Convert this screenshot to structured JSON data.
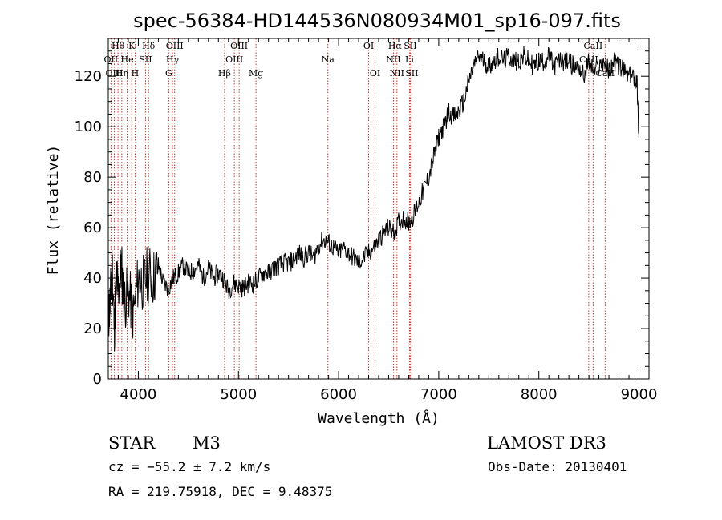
{
  "chart_data": {
    "type": "line",
    "title": "spec-56384-HD144536N080934M01_sp16-097.fits",
    "xlabel": "Wavelength (Å)",
    "ylabel": "Flux (relative)",
    "xlim": [
      3700,
      9100
    ],
    "ylim": [
      0,
      135
    ],
    "xticks": [
      4000,
      5000,
      6000,
      7000,
      8000,
      9000
    ],
    "yticks": [
      0,
      20,
      40,
      60,
      80,
      100,
      120
    ],
    "grid": false,
    "series": [
      {
        "x": [
          3700,
          3720,
          3740,
          3760,
          3780,
          3800,
          3830,
          3860,
          3900,
          3950,
          4000,
          4050,
          4100,
          4150,
          4200,
          4250,
          4300,
          4350,
          4400,
          4450,
          4500,
          4550,
          4600,
          4650,
          4700,
          4750,
          4800,
          4850,
          4900,
          4950,
          5000,
          5050,
          5100,
          5150,
          5200,
          5250,
          5300,
          5350,
          5400,
          5450,
          5500,
          5550,
          5600,
          5650,
          5700,
          5750,
          5800,
          5850,
          5900,
          5950,
          6000,
          6050,
          6100,
          6150,
          6200,
          6250,
          6300,
          6350,
          6400,
          6450,
          6500,
          6550,
          6600,
          6650,
          6700,
          6750,
          6800,
          6850,
          6900,
          6950,
          7000,
          7050,
          7100,
          7150,
          7200,
          7250,
          7300,
          7350,
          7400,
          7450,
          7500,
          7550,
          7600,
          7650,
          7700,
          7750,
          7800,
          7850,
          7900,
          7950,
          8000,
          8050,
          8100,
          8150,
          8200,
          8250,
          8300,
          8350,
          8400,
          8450,
          8500,
          8550,
          8600,
          8650,
          8700,
          8750,
          8800,
          8850,
          8900,
          8950,
          8980,
          9000
        ],
        "y": [
          25,
          30,
          45,
          20,
          40,
          35,
          45,
          30,
          35,
          25,
          40,
          38,
          42,
          40,
          45,
          38,
          36,
          40,
          42,
          45,
          42,
          43,
          45,
          40,
          44,
          40,
          42,
          40,
          35,
          38,
          37,
          36,
          38,
          38,
          40,
          42,
          42,
          44,
          45,
          46,
          46,
          47,
          50,
          48,
          50,
          48,
          53,
          55,
          54,
          52,
          50,
          52,
          50,
          48,
          46,
          48,
          50,
          52,
          55,
          58,
          60,
          58,
          62,
          64,
          62,
          65,
          70,
          75,
          80,
          88,
          96,
          100,
          106,
          104,
          106,
          110,
          118,
          124,
          128,
          126,
          124,
          126,
          128,
          126,
          128,
          126,
          126,
          128,
          126,
          124,
          126,
          126,
          128,
          124,
          126,
          126,
          126,
          124,
          124,
          120,
          126,
          122,
          124,
          126,
          122,
          126,
          124,
          122,
          120,
          120,
          118,
          95
        ]
      }
    ],
    "spectral_lines": [
      {
        "label": "Hθ",
        "x": 3797,
        "row": 0
      },
      {
        "label": "K",
        "x": 3934,
        "row": 0
      },
      {
        "label": "Hδ",
        "x": 4102,
        "row": 0
      },
      {
        "label": "OIII",
        "x": 4363,
        "row": 0
      },
      {
        "label": "OIII",
        "x": 5007,
        "row": 0
      },
      {
        "label": "OI",
        "x": 6300,
        "row": 0
      },
      {
        "label": "Hα",
        "x": 6563,
        "row": 0
      },
      {
        "label": "SII",
        "x": 6716,
        "row": 0
      },
      {
        "label": "CaII",
        "x": 8542,
        "row": 0
      },
      {
        "label": "OII",
        "x": 3727,
        "row": 1
      },
      {
        "label": "He",
        "x": 3889,
        "row": 1
      },
      {
        "label": "SII",
        "x": 4072,
        "row": 1
      },
      {
        "label": "Hγ",
        "x": 4341,
        "row": 1
      },
      {
        "label": "OIII",
        "x": 4959,
        "row": 1
      },
      {
        "label": "Na",
        "x": 5893,
        "row": 1
      },
      {
        "label": "NII",
        "x": 6548,
        "row": 1
      },
      {
        "label": "Li",
        "x": 6708,
        "row": 1
      },
      {
        "label": "CaII",
        "x": 8498,
        "row": 1
      },
      {
        "label": "OIII",
        "x": 3760,
        "row": 2
      },
      {
        "label": "Hη",
        "x": 3835,
        "row": 2
      },
      {
        "label": "H",
        "x": 3968,
        "row": 2
      },
      {
        "label": "G",
        "x": 4304,
        "row": 2
      },
      {
        "label": "Hβ",
        "x": 4861,
        "row": 2
      },
      {
        "label": "Mg",
        "x": 5175,
        "row": 2
      },
      {
        "label": "OI",
        "x": 6364,
        "row": 2
      },
      {
        "label": "NII",
        "x": 6583,
        "row": 2
      },
      {
        "label": "SII",
        "x": 6731,
        "row": 2
      },
      {
        "label": "CaII",
        "x": 8662,
        "row": 2
      }
    ],
    "line_marker_color": "#c0392b",
    "spectrum_color": "#000000"
  },
  "info": {
    "object_class": "STAR",
    "subclass": "M3",
    "survey": "LAMOST DR3",
    "cz": "cz = −55.2 ± 7.2 km/s",
    "obs_date": "Obs-Date: 20130401",
    "coords": "RA = 219.75918, DEC =    9.48375"
  }
}
